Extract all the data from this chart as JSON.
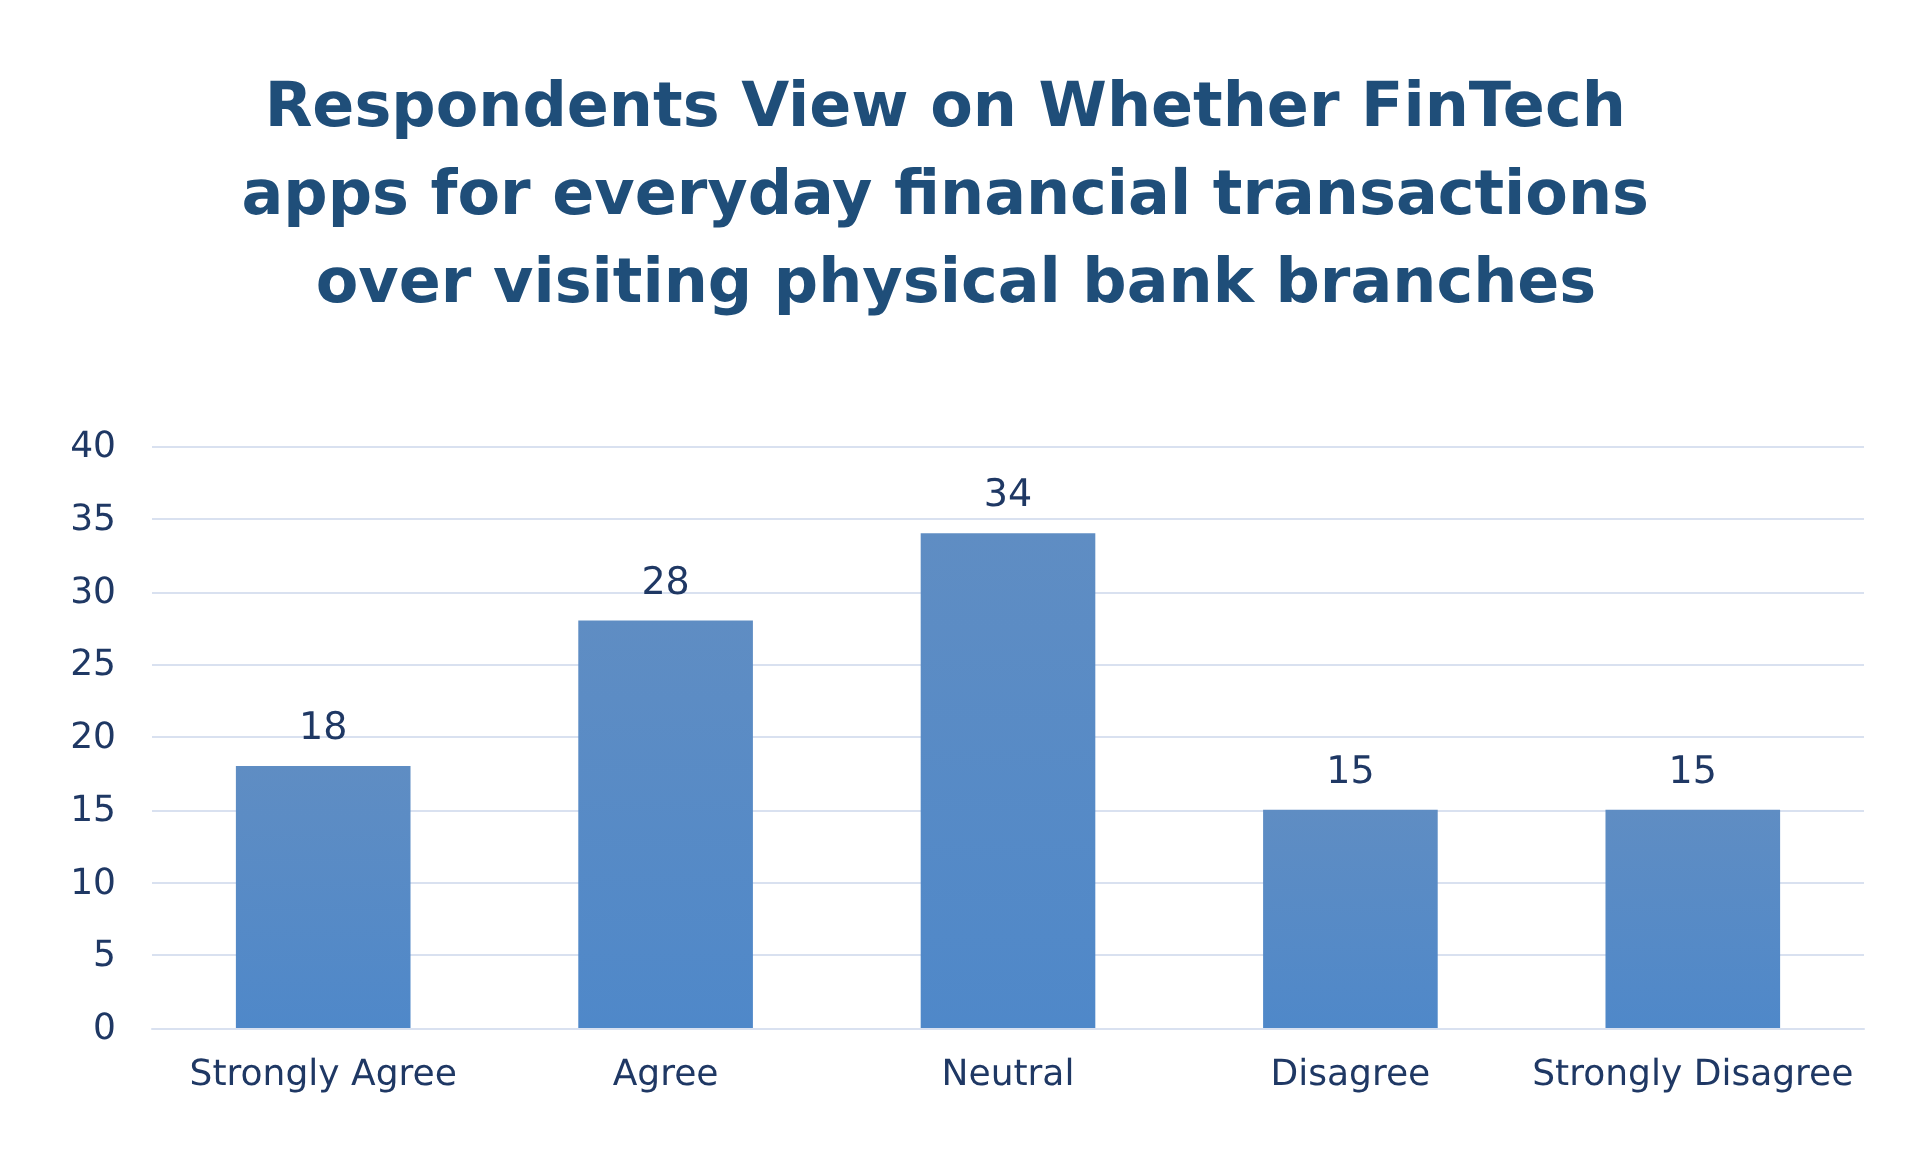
{
  "chart_data": {
    "type": "bar",
    "title": "Respondents View on Whether FinTech apps for everyday financial transactions over visiting physical bank branches",
    "categories": [
      "Strongly Agree",
      "Agree",
      "Neutral",
      "Disagree",
      "Strongly Disagree"
    ],
    "values": [
      18,
      28,
      34,
      15,
      15
    ],
    "color": "#4a7ebb",
    "data_labels": true,
    "ylim": [
      0,
      40
    ],
    "yticks": [
      0,
      5,
      10,
      15,
      20,
      25,
      30,
      35,
      40
    ],
    "grid": "y"
  }
}
